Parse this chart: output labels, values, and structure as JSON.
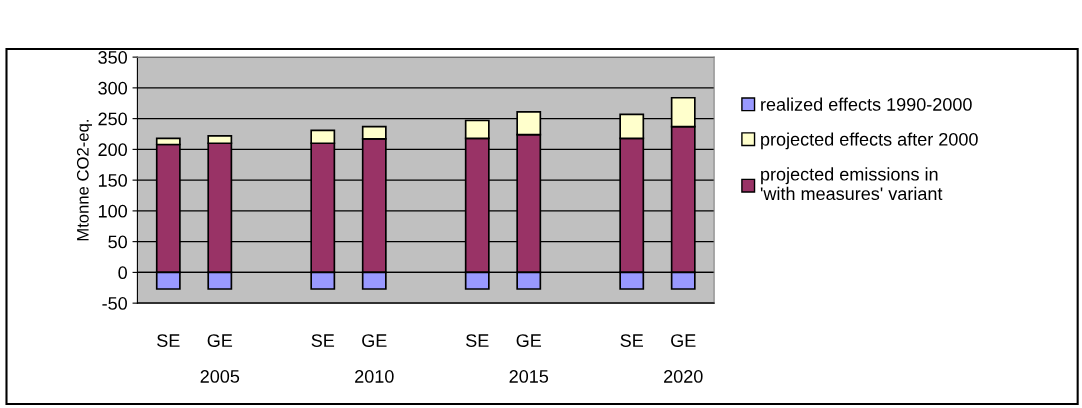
{
  "chart_data": {
    "type": "bar",
    "stacked": true,
    "ylabel": "Mtonne CO2-eq.",
    "categories": [
      "SE",
      "GE",
      null,
      "SE",
      "GE",
      null,
      "SE",
      "GE",
      null,
      "SE",
      "GE"
    ],
    "annotations": [
      "2005",
      "2010",
      "2015",
      "2020"
    ],
    "series": [
      {
        "name": "projected emissions in 'with measures' variant",
        "color": "#993366",
        "values": [
          208,
          210,
          null,
          210,
          217,
          null,
          218,
          224,
          null,
          218,
          237
        ]
      },
      {
        "name": "projected effects after 2000",
        "color": "#ffffcc",
        "values": [
          10,
          12,
          null,
          21,
          20,
          null,
          29,
          37,
          null,
          39,
          47
        ]
      },
      {
        "name": "realized effects 1990-2000",
        "color": "#9999ff",
        "values": [
          -27,
          -27,
          null,
          -27,
          -27,
          null,
          -27,
          -27,
          null,
          -27,
          -27
        ]
      }
    ],
    "ylim": [
      -50,
      350
    ],
    "yticks": [
      -50,
      0,
      50,
      100,
      150,
      200,
      250,
      300,
      350
    ],
    "grid": "y",
    "legend": "right"
  }
}
